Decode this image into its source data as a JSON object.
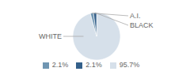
{
  "chart_data": {
    "type": "pie",
    "categories": [
      "WHITE",
      "A.I.",
      "BLACK"
    ],
    "values": [
      95.7,
      2.1,
      2.1
    ],
    "value_labels": [
      "95.7%",
      "2.1%",
      "2.1%"
    ],
    "colors": [
      "#d6e0ea",
      "#7096b2",
      "#34608a"
    ],
    "legend": "bottom"
  }
}
